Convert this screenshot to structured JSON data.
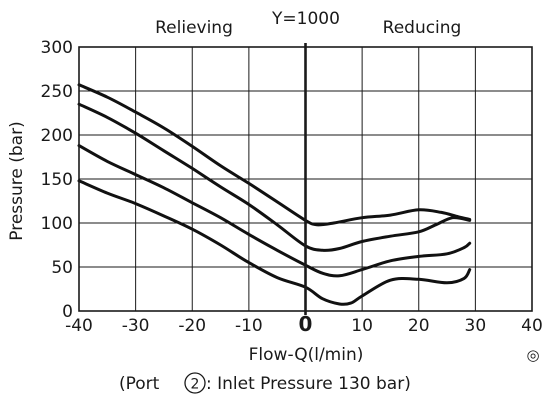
{
  "chart_data": {
    "type": "line",
    "top_left_label": "Relieving",
    "title": "Y=1000",
    "top_right_label": "Reducing",
    "xlabel": "Flow-Q(l/min)",
    "ylabel": "Pressure (bar)",
    "caption_prefix": "(Port ",
    "caption_port": "2",
    "caption_suffix": " : Inlet Pressure 130 bar)",
    "corner_mark": "◎",
    "xlim": [
      -40,
      40
    ],
    "ylim": [
      0,
      300
    ],
    "x_ticks": [
      "-40",
      "-30",
      "-20",
      "-10",
      "0",
      "10",
      "20",
      "30",
      "40"
    ],
    "y_ticks": [
      "0",
      "50",
      "100",
      "150",
      "200",
      "250",
      "300"
    ],
    "grid": true,
    "series": [
      {
        "x": [
          -40,
          -35,
          -30,
          -25,
          -20,
          -15,
          -10,
          -5,
          0,
          2,
          5,
          10,
          15,
          20,
          24,
          27,
          29
        ],
        "y": [
          257,
          243,
          226,
          208,
          187,
          165,
          145,
          124,
          103,
          98,
          100,
          106,
          109,
          115,
          112,
          107,
          104
        ]
      },
      {
        "x": [
          -40,
          -35,
          -30,
          -25,
          -20,
          -15,
          -10,
          -5,
          0,
          3,
          6,
          10,
          15,
          20,
          23,
          26,
          29
        ],
        "y": [
          235,
          220,
          202,
          182,
          162,
          141,
          121,
          98,
          74,
          69,
          71,
          79,
          85,
          90,
          98,
          106,
          103
        ]
      },
      {
        "x": [
          -40,
          -35,
          -30,
          -25,
          -20,
          -15,
          -10,
          -5,
          0,
          3,
          6,
          10,
          15,
          20,
          25,
          28,
          29
        ],
        "y": [
          188,
          170,
          155,
          140,
          123,
          106,
          87,
          69,
          52,
          43,
          40,
          47,
          57,
          62,
          65,
          72,
          77
        ]
      },
      {
        "x": [
          -40,
          -35,
          -30,
          -25,
          -20,
          -15,
          -10,
          -5,
          0,
          3,
          6,
          8,
          10,
          15,
          20,
          25,
          28,
          29
        ],
        "y": [
          148,
          134,
          122,
          108,
          93,
          75,
          55,
          38,
          27,
          14,
          8,
          9,
          17,
          35,
          36,
          32,
          37,
          47
        ]
      }
    ]
  }
}
